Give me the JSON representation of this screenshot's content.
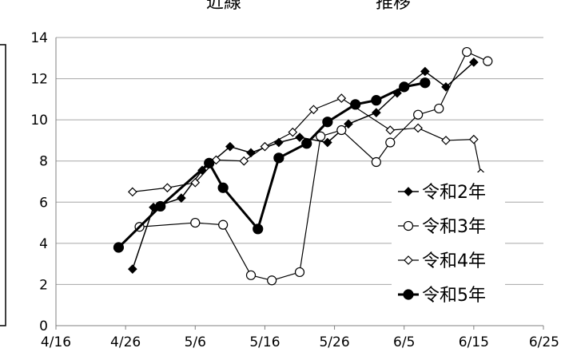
{
  "chart_data": {
    "type": "line",
    "title_visible_fragments": [
      "近線",
      "推移"
    ],
    "x_ticks": [
      "4/16",
      "4/26",
      "5/6",
      "5/16",
      "5/26",
      "6/5",
      "6/15",
      "6/25"
    ],
    "xlim": [
      "4/16",
      "6/25"
    ],
    "ylim": [
      0,
      14
    ],
    "y_ticks": [
      0,
      2,
      4,
      6,
      8,
      10,
      12,
      14
    ],
    "grid": "horizontal",
    "legend_position": "right",
    "series": [
      {
        "name": "令和2年",
        "marker": "filled-diamond",
        "color": "#000000",
        "points": [
          [
            "4/27",
            2.75
          ],
          [
            "4/30",
            5.75
          ],
          [
            "5/4",
            6.2
          ],
          [
            "5/7",
            7.55
          ],
          [
            "5/11",
            8.7
          ],
          [
            "5/14",
            8.4
          ],
          [
            "5/18",
            8.9
          ],
          [
            "5/21",
            9.15
          ],
          [
            "5/25",
            8.9
          ],
          [
            "5/28",
            9.8
          ],
          [
            "6/1",
            10.35
          ],
          [
            "6/4",
            11.3
          ],
          [
            "6/8",
            12.35
          ],
          [
            "6/11",
            11.6
          ],
          [
            "6/15",
            12.8
          ]
        ]
      },
      {
        "name": "令和3年",
        "marker": "open-circle",
        "color": "#000000",
        "points": [
          [
            "4/28",
            4.8
          ],
          [
            "5/6",
            5.0
          ],
          [
            "5/10",
            4.9
          ],
          [
            "5/14",
            2.45
          ],
          [
            "5/17",
            2.2
          ],
          [
            "5/21",
            2.6
          ],
          [
            "5/24",
            9.2
          ],
          [
            "5/27",
            9.5
          ],
          [
            "6/1",
            7.95
          ],
          [
            "6/3",
            8.9
          ],
          [
            "6/7",
            10.25
          ],
          [
            "6/10",
            10.55
          ],
          [
            "6/14",
            13.3
          ],
          [
            "6/17",
            12.85
          ]
        ]
      },
      {
        "name": "令和4年",
        "marker": "open-diamond",
        "color": "#000000",
        "points": [
          [
            "4/27",
            6.5
          ],
          [
            "5/2",
            6.7
          ],
          [
            "5/6",
            6.95
          ],
          [
            "5/9",
            8.05
          ],
          [
            "5/13",
            8.0
          ],
          [
            "5/16",
            8.7
          ],
          [
            "5/20",
            9.4
          ],
          [
            "5/23",
            10.5
          ],
          [
            "5/27",
            11.05
          ],
          [
            "6/3",
            9.5
          ],
          [
            "6/7",
            9.6
          ],
          [
            "6/11",
            9.0
          ],
          [
            "6/15",
            9.05
          ],
          [
            "6/16",
            7.4
          ]
        ]
      },
      {
        "name": "令和5年",
        "marker": "filled-circle",
        "color": "#000000",
        "points": [
          [
            "4/25",
            3.8
          ],
          [
            "5/1",
            5.8
          ],
          [
            "5/8",
            7.9
          ],
          [
            "5/10",
            6.7
          ],
          [
            "5/15",
            4.7
          ],
          [
            "5/18",
            8.15
          ],
          [
            "5/22",
            8.85
          ],
          [
            "5/25",
            9.9
          ],
          [
            "5/29",
            10.75
          ],
          [
            "6/1",
            10.95
          ],
          [
            "6/5",
            11.6
          ],
          [
            "6/8",
            11.8
          ]
        ]
      }
    ]
  }
}
